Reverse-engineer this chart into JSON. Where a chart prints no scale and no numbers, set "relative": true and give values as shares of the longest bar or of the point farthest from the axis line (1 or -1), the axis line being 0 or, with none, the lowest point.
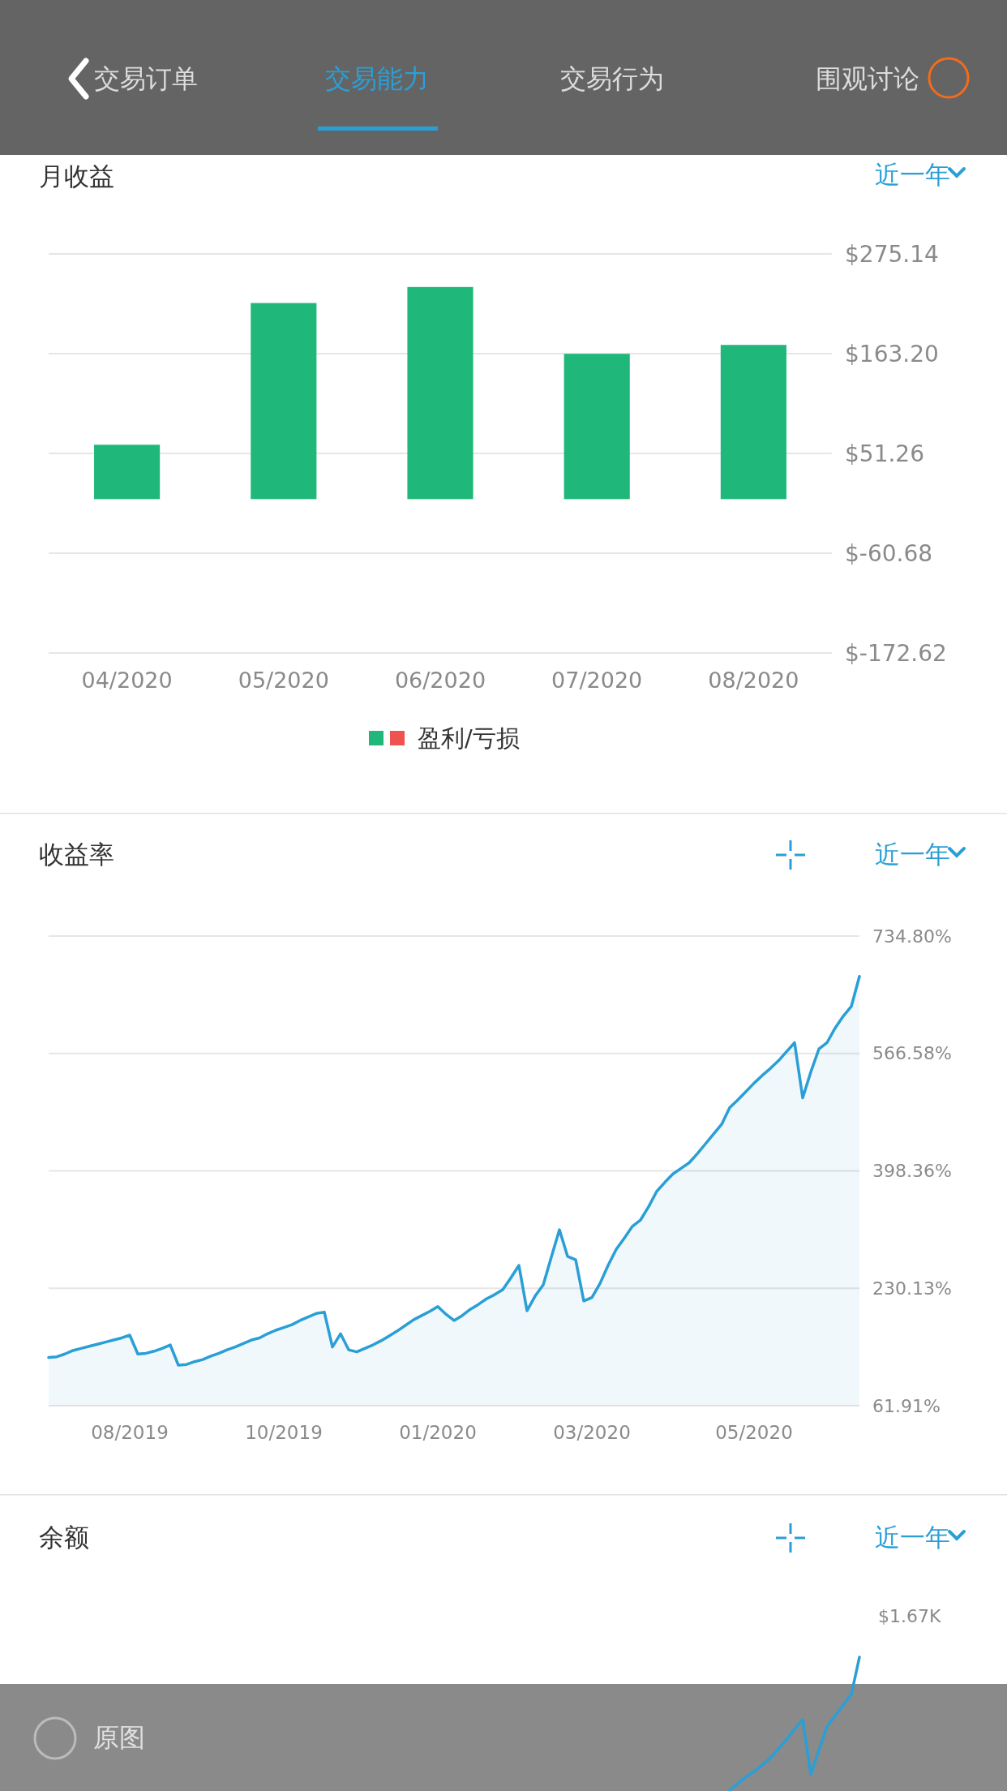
{
  "chart_data": [
    {
      "type": "bar",
      "title": "月收益",
      "categories": [
        "04/2020",
        "05/2020",
        "06/2020",
        "07/2020",
        "08/2020"
      ],
      "series": [
        {
          "name": "盈利/亏损",
          "color": "#1fb87a",
          "values": [
            61,
            220,
            238,
            163,
            173
          ]
        }
      ],
      "ylim": [
        -172.62,
        275.14
      ],
      "yticks": [
        {
          "value": -172.62,
          "label": "$-172.62"
        },
        {
          "value": -60.68,
          "label": "$-60.68"
        },
        {
          "value": 51.26,
          "label": "$51.26"
        },
        {
          "value": 163.2,
          "label": "$163.20"
        },
        {
          "value": 275.14,
          "label": "$275.14"
        }
      ],
      "grid": "y",
      "legend": "bottom",
      "annotations": [
        "交易订单",
        "交易能力",
        "交易行为",
        "围观讨论",
        "近一年"
      ]
    },
    {
      "type": "area",
      "title": "收益率",
      "categories": [
        null,
        null,
        null,
        null,
        null,
        null,
        null,
        null,
        null,
        null,
        "08/2019",
        null,
        null,
        null,
        null,
        null,
        null,
        null,
        null,
        null,
        null,
        null,
        null,
        null,
        null,
        null,
        null,
        null,
        null,
        "10/2019",
        null,
        null,
        null,
        null,
        null,
        null,
        null,
        null,
        null,
        null,
        null,
        null,
        null,
        null,
        null,
        null,
        null,
        null,
        "01/2020",
        null,
        null,
        null,
        null,
        null,
        null,
        null,
        null,
        null,
        null,
        null,
        null,
        null,
        null,
        null,
        null,
        null,
        null,
        "03/2020",
        null,
        null,
        null,
        null,
        null,
        null,
        null,
        null,
        null,
        null,
        null,
        null,
        null,
        null,
        null,
        null,
        null,
        null,
        null,
        "05/2020",
        null,
        null,
        null,
        null,
        null,
        null,
        null,
        null,
        null,
        null,
        null,
        null,
        null
      ],
      "series": [
        {
          "color": "#2a9fd6",
          "values": [
            131,
            132,
            136,
            141,
            144,
            147,
            150,
            153,
            156,
            159,
            163,
            136,
            137,
            140,
            144,
            149,
            120,
            121,
            125,
            128,
            133,
            137,
            142,
            146,
            151,
            156,
            159,
            165,
            170,
            174,
            178,
            184,
            189,
            194,
            196,
            146,
            165,
            142,
            139,
            144,
            149,
            155,
            162,
            169,
            177,
            185,
            191,
            197,
            204,
            193,
            184,
            191,
            200,
            207,
            215,
            221,
            228,
            245,
            263,
            198,
            219,
            235,
            275,
            314,
            276,
            271,
            212,
            217,
            237,
            263,
            286,
            302,
            319,
            328,
            347,
            369,
            382,
            394,
            402,
            410,
            423,
            437,
            451,
            465,
            489,
            500,
            512,
            524,
            535,
            545,
            556,
            569,
            582,
            503,
            540,
            573,
            582,
            603,
            620,
            634,
            677
          ]
        }
      ],
      "ylim": [
        61.91,
        734.8
      ],
      "yticks": [
        {
          "value": 61.91,
          "label": "61.91%"
        },
        {
          "value": 230.13,
          "label": "230.13%"
        },
        {
          "value": 398.36,
          "label": "398.36%"
        },
        {
          "value": 566.58,
          "label": "566.58%"
        },
        {
          "value": 734.8,
          "label": "734.80%"
        }
      ],
      "grid": "y",
      "annotations": [
        "近一年"
      ]
    },
    {
      "type": "line",
      "title": "余额",
      "relative": true,
      "categories": [
        null,
        null,
        null,
        null,
        null,
        null,
        null,
        null,
        null,
        null,
        null,
        null,
        null,
        null,
        null,
        null,
        null,
        null,
        null,
        null,
        null,
        null,
        null,
        null,
        null,
        null,
        null,
        null,
        null,
        null,
        null,
        null,
        null,
        null,
        null,
        null,
        null,
        null,
        null,
        null,
        null,
        null,
        null,
        null,
        null,
        null,
        null,
        null,
        null,
        null,
        null,
        null,
        null,
        null,
        null,
        null,
        null,
        null,
        null,
        null,
        null,
        null,
        null,
        null,
        null,
        null,
        null,
        null,
        null,
        null,
        null,
        null,
        null,
        null,
        null,
        null,
        null,
        null,
        null,
        null,
        null,
        null,
        null,
        null,
        null,
        null,
        null,
        null,
        null,
        null,
        null,
        null,
        null,
        null,
        null,
        null,
        null,
        null,
        null,
        null,
        null
      ],
      "series": [
        {
          "color": "#2a9fd6",
          "values": [
            null,
            null,
            null,
            null,
            null,
            null,
            null,
            null,
            null,
            null,
            null,
            null,
            null,
            null,
            null,
            null,
            null,
            null,
            null,
            null,
            null,
            null,
            null,
            null,
            null,
            null,
            null,
            null,
            null,
            null,
            null,
            null,
            null,
            null,
            null,
            null,
            null,
            null,
            null,
            null,
            null,
            null,
            null,
            null,
            null,
            null,
            null,
            null,
            null,
            null,
            null,
            null,
            null,
            null,
            null,
            null,
            null,
            null,
            null,
            null,
            null,
            null,
            null,
            null,
            null,
            null,
            null,
            null,
            null,
            null,
            null,
            null,
            null,
            null,
            null,
            null,
            null,
            null,
            null,
            null,
            null,
            null,
            null,
            null,
            0,
            0.05,
            0.1,
            0.14,
            0.19,
            0.24,
            0.31,
            0.38,
            0.46,
            0.53,
            0.12,
            0.3,
            0.48,
            0.56,
            0.64,
            0.72,
            1
          ]
        }
      ],
      "annotations": [
        "近一年",
        "$1.67K",
        "原图"
      ]
    }
  ]
}
